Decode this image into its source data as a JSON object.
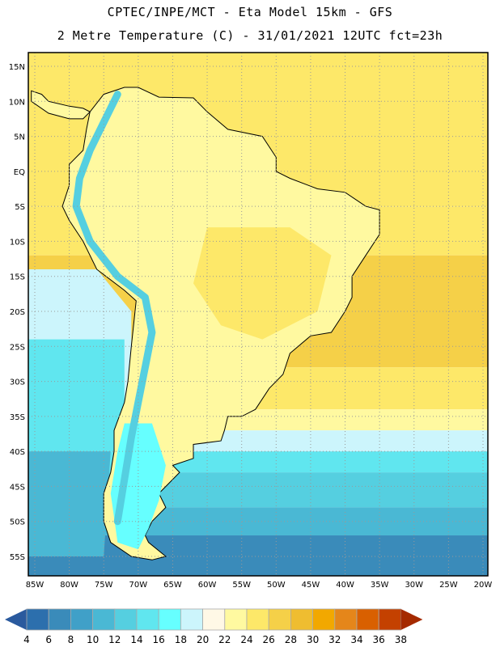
{
  "header": {
    "line1": "CPTEC/INPE/MCT -  Eta Model 15km - GFS",
    "line2": "2 Metre Temperature (C) - 31/01/2021 12UTC fct=23h"
  },
  "map": {
    "lat_labels": [
      {
        "v": 15,
        "t": "15N"
      },
      {
        "v": 10,
        "t": "10N"
      },
      {
        "v": 5,
        "t": "5N"
      },
      {
        "v": 0,
        "t": "EQ"
      },
      {
        "v": -5,
        "t": "5S"
      },
      {
        "v": -10,
        "t": "10S"
      },
      {
        "v": -15,
        "t": "15S"
      },
      {
        "v": -20,
        "t": "20S"
      },
      {
        "v": -25,
        "t": "25S"
      },
      {
        "v": -30,
        "t": "30S"
      },
      {
        "v": -35,
        "t": "35S"
      },
      {
        "v": -40,
        "t": "40S"
      },
      {
        "v": -45,
        "t": "45S"
      },
      {
        "v": -50,
        "t": "50S"
      },
      {
        "v": -55,
        "t": "55S"
      }
    ],
    "lon_labels": [
      {
        "v": -85,
        "t": "85W"
      },
      {
        "v": -80,
        "t": "80W"
      },
      {
        "v": -75,
        "t": "75W"
      },
      {
        "v": -70,
        "t": "70W"
      },
      {
        "v": -65,
        "t": "65W"
      },
      {
        "v": -60,
        "t": "60W"
      },
      {
        "v": -55,
        "t": "55W"
      },
      {
        "v": -50,
        "t": "50W"
      },
      {
        "v": -45,
        "t": "45W"
      },
      {
        "v": -40,
        "t": "40W"
      },
      {
        "v": -35,
        "t": "35W"
      },
      {
        "v": -30,
        "t": "30W"
      },
      {
        "v": -25,
        "t": "25W"
      },
      {
        "v": -20,
        "t": "20W"
      }
    ]
  },
  "colorbar": {
    "labels": [
      "4",
      "6",
      "8",
      "10",
      "12",
      "14",
      "16",
      "18",
      "20",
      "22",
      "24",
      "26",
      "28",
      "30",
      "32",
      "34",
      "36",
      "38"
    ],
    "colors": [
      "#2c6fad",
      "#3a8bba",
      "#40a0c8",
      "#4ab8d4",
      "#55cfe0",
      "#60e6ef",
      "#66ffff",
      "#ccf5fc",
      "#fff8e6",
      "#fff9a0",
      "#fde869",
      "#f5d048",
      "#efbd30",
      "#f2a800",
      "#e5861a",
      "#d96000",
      "#c44100"
    ],
    "under_color": "#2a5a9e",
    "over_color": "#a52a00"
  }
}
